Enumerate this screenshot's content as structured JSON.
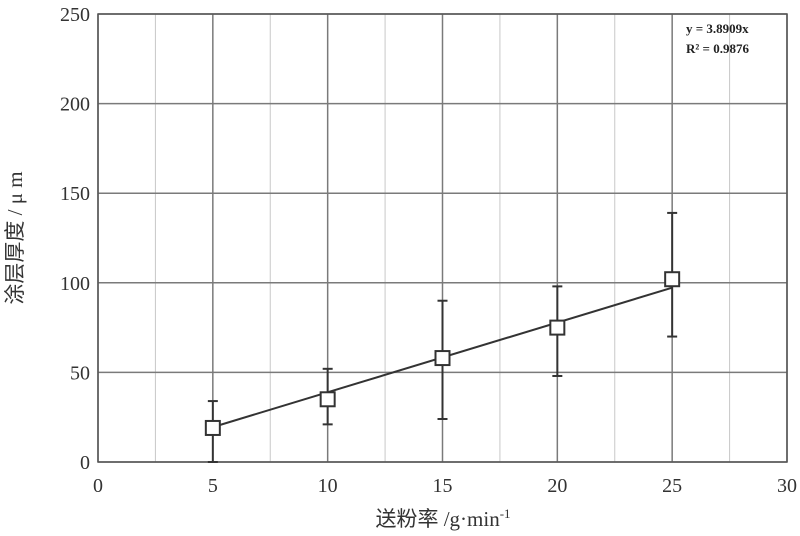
{
  "chart_data": {
    "type": "scatter",
    "xlabel": "送粉率 /g·min",
    "xlabel_sup": "-1",
    "ylabel": "涂层厚度 / μ m",
    "xlim": [
      0,
      30
    ],
    "ylim": [
      0,
      250
    ],
    "x_ticks": [
      "0",
      "5",
      "10",
      "15",
      "20",
      "25",
      "30"
    ],
    "y_ticks": [
      "0",
      "50",
      "100",
      "150",
      "200",
      "250"
    ],
    "x_tick_values": [
      0,
      5,
      10,
      15,
      20,
      25,
      30
    ],
    "y_tick_values": [
      0,
      50,
      100,
      150,
      200,
      250
    ],
    "grid": true,
    "series": [
      {
        "x": [
          5,
          10,
          15,
          20,
          25
        ],
        "y": [
          19,
          35,
          58,
          75,
          102
        ],
        "error_low": [
          0,
          21,
          24,
          48,
          70
        ],
        "error_high": [
          34,
          52,
          90,
          98,
          139
        ]
      }
    ],
    "trendline": {
      "slope": 3.8909,
      "x_range": [
        5,
        25
      ]
    },
    "annotation": {
      "equation": "y = 3.8909x",
      "r_squared": "R² = 0.9876",
      "position": "top-right"
    }
  }
}
